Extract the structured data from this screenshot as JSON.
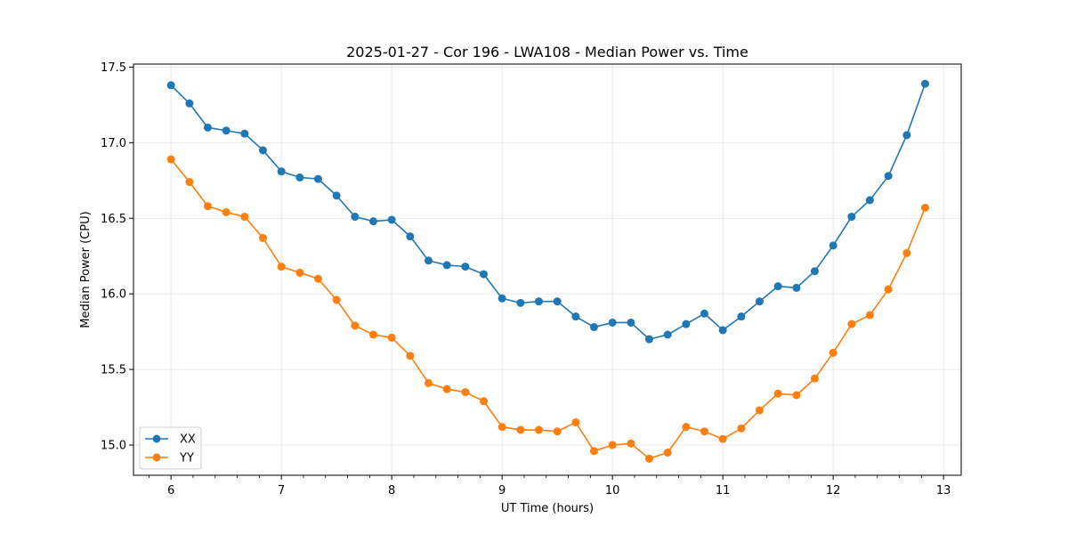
{
  "chart_data": {
    "type": "line",
    "title": "2025-01-27 - Cor 196 - LWA108 - Median Power vs. Time",
    "xlabel": "UT Time (hours)",
    "ylabel": "Median Power (CPU)",
    "xlim": [
      5.66,
      13.16
    ],
    "ylim": [
      14.8,
      17.52
    ],
    "xticks": [
      6,
      7,
      8,
      9,
      10,
      11,
      12,
      13
    ],
    "yticks": [
      15.0,
      15.5,
      16.0,
      16.5,
      17.0,
      17.5
    ],
    "grid": true,
    "legend_position": "lower-left",
    "x": [
      6.0,
      6.167,
      6.333,
      6.5,
      6.667,
      6.833,
      7.0,
      7.167,
      7.333,
      7.5,
      7.667,
      7.833,
      8.0,
      8.167,
      8.333,
      8.5,
      8.667,
      8.833,
      9.0,
      9.167,
      9.333,
      9.5,
      9.667,
      9.833,
      10.0,
      10.167,
      10.333,
      10.5,
      10.667,
      10.833,
      11.0,
      11.167,
      11.333,
      11.5,
      11.667,
      11.833,
      12.0,
      12.167,
      12.333,
      12.5,
      12.667,
      12.833
    ],
    "series": [
      {
        "name": "XX",
        "color": "#1f77b4",
        "values": [
          17.38,
          17.26,
          17.1,
          17.08,
          17.06,
          16.95,
          16.81,
          16.77,
          16.76,
          16.65,
          16.51,
          16.48,
          16.49,
          16.38,
          16.22,
          16.19,
          16.18,
          16.13,
          15.97,
          15.94,
          15.95,
          15.95,
          15.85,
          15.78,
          15.81,
          15.81,
          15.7,
          15.73,
          15.8,
          15.87,
          15.76,
          15.85,
          15.95,
          16.05,
          16.04,
          16.15,
          16.32,
          16.51,
          16.62,
          16.78,
          17.05,
          17.39
        ]
      },
      {
        "name": "YY",
        "color": "#ff7f0e",
        "values": [
          16.89,
          16.74,
          16.58,
          16.54,
          16.51,
          16.37,
          16.18,
          16.14,
          16.1,
          15.96,
          15.79,
          15.73,
          15.71,
          15.59,
          15.41,
          15.37,
          15.35,
          15.29,
          15.12,
          15.1,
          15.1,
          15.09,
          15.15,
          14.96,
          15.0,
          15.01,
          14.91,
          14.95,
          15.12,
          15.09,
          15.04,
          15.11,
          15.23,
          15.34,
          15.33,
          15.44,
          15.61,
          15.8,
          15.86,
          16.03,
          16.27,
          16.57
        ]
      }
    ]
  }
}
